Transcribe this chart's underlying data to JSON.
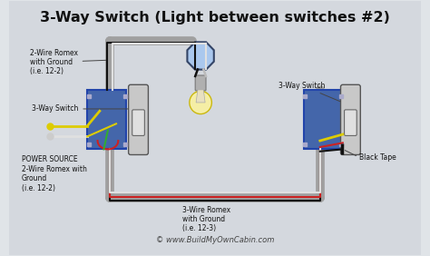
{
  "title": "3-Way Switch (Light between switches #2)",
  "bg_color": "#d0d5dc",
  "title_color": "#111111",
  "title_fontsize": 11.5,
  "watermark": "© www.BuildMyOwnCabin.com",
  "labels": {
    "romex_2wire": "2-Wire Romex\nwith Ground\n(i.e. 12-2)",
    "switch1_label": "3-Way Switch",
    "power_source": "POWER SOURCE\n2-Wire Romex with\nGround\n(i.e. 12-2)",
    "romex_3wire": "3-Wire Romex\nwith Ground\n(i.e. 12-3)",
    "switch2_label": "3-Way Switch",
    "black_tape": "Black Tape"
  },
  "colors": {
    "wire_black": "#111111",
    "wire_white": "#e0e0e0",
    "wire_red": "#cc2222",
    "wire_yellow": "#ddcc00",
    "wire_green": "#33aa33",
    "box_blue": "#4466aa",
    "box_dark": "#2244aa",
    "switch_body": "#c8c8c8",
    "switch_face": "#e0e0e0",
    "light_box_fill": "#aac8ee",
    "light_box_edge": "#334466",
    "light_yellow": "#f8e870",
    "light_body": "#e8e0c0",
    "bulb_glow": "#f8f0a0",
    "conduit": "#a0a0a0",
    "conduit_edge": "#707070",
    "frame_bg": "#e0e4e8",
    "inner_bg": "#d4d8de"
  }
}
